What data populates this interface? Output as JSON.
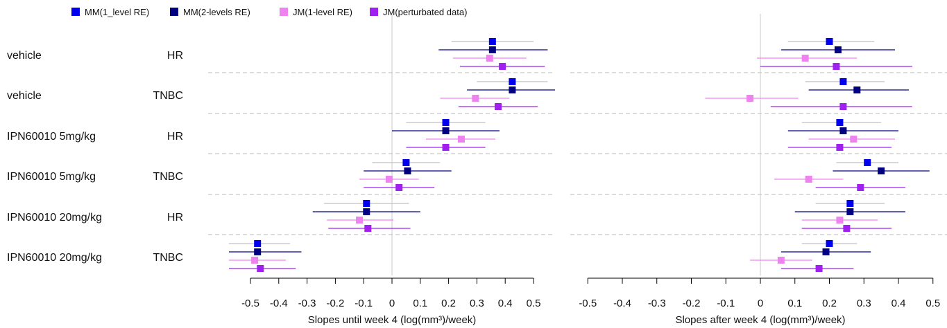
{
  "chart_data": {
    "type": "forest",
    "legend": [
      {
        "name": "MM(1_level RE)",
        "color": "#0000ee"
      },
      {
        "name": "MM(2-levels RE)",
        "color": "#000080"
      },
      {
        "name": "JM(1-level RE)",
        "color": "#ee82ee"
      },
      {
        "name": "JM(perturbated data)",
        "color": "#a020f0"
      }
    ],
    "legend_placement": "top-left",
    "ci_colors": [
      "#c0c0c0",
      "#000080",
      "#ee82ee",
      "#a020f0"
    ],
    "rows": [
      {
        "treatment": "vehicle",
        "subtype": "HR"
      },
      {
        "treatment": "vehicle",
        "subtype": "TNBC"
      },
      {
        "treatment": "IPN60010 5mg/kg",
        "subtype": "HR"
      },
      {
        "treatment": "IPN60010 5mg/kg",
        "subtype": "TNBC"
      },
      {
        "treatment": "IPN60010 20mg/kg",
        "subtype": "HR"
      },
      {
        "treatment": "IPN60010 20mg/kg",
        "subtype": "TNBC"
      }
    ],
    "panels": [
      {
        "xlabel": "Slopes until week 4 (log(mm³)/week)",
        "xlim": [
          -0.6,
          0.6
        ],
        "ticks": [
          "-0.5",
          "-0.4",
          "-0.3",
          "-0.2",
          "-0.1",
          "0",
          "0.1",
          "0.2",
          "0.3",
          "0.4",
          "0.5"
        ],
        "series": [
          {
            "name": "MM(1_level RE)",
            "estimates": [
              [
                0.355,
                0.21,
                0.5
              ],
              [
                0.425,
                0.3,
                0.55
              ],
              [
                0.19,
                0.05,
                0.33
              ],
              [
                0.05,
                -0.07,
                0.17
              ],
              [
                -0.09,
                -0.24,
                0.06
              ],
              [
                -0.475,
                -0.59,
                -0.36
              ]
            ]
          },
          {
            "name": "MM(2-levels RE)",
            "estimates": [
              [
                0.355,
                0.165,
                0.55
              ],
              [
                0.425,
                0.265,
                0.585
              ],
              [
                0.19,
                0.0,
                0.38
              ],
              [
                0.055,
                -0.1,
                0.21
              ],
              [
                -0.09,
                -0.28,
                0.1
              ],
              [
                -0.475,
                -0.63,
                -0.32
              ]
            ]
          },
          {
            "name": "JM(1-level RE)",
            "estimates": [
              [
                0.345,
                0.215,
                0.475
              ],
              [
                0.295,
                0.17,
                0.415
              ],
              [
                0.245,
                0.12,
                0.365
              ],
              [
                -0.01,
                -0.115,
                0.095
              ],
              [
                -0.115,
                -0.23,
                0.005
              ],
              [
                -0.485,
                -0.595,
                -0.375
              ]
            ]
          },
          {
            "name": "JM(perturbated data)",
            "estimates": [
              [
                0.39,
                0.24,
                0.54
              ],
              [
                0.375,
                0.235,
                0.515
              ],
              [
                0.19,
                0.05,
                0.33
              ],
              [
                0.025,
                -0.1,
                0.15
              ],
              [
                -0.085,
                -0.225,
                0.065
              ],
              [
                -0.465,
                -0.59,
                -0.34
              ]
            ]
          }
        ]
      },
      {
        "xlabel": "Slopes after week 4 (log(mm³)/week)",
        "xlim": [
          -0.55,
          0.55
        ],
        "ticks": [
          "-0.5",
          "-0.4",
          "-0.3",
          "-0.2",
          "-0.1",
          "0",
          "0.1",
          "0.2",
          "0.3",
          "0.4",
          "0.5"
        ],
        "series": [
          {
            "name": "MM(1_level RE)",
            "estimates": [
              [
                0.2,
                0.08,
                0.33
              ],
              [
                0.24,
                0.13,
                0.36
              ],
              [
                0.23,
                0.12,
                0.35
              ],
              [
                0.31,
                0.22,
                0.4
              ],
              [
                0.26,
                0.16,
                0.36
              ],
              [
                0.2,
                0.12,
                0.28
              ]
            ]
          },
          {
            "name": "MM(2-levels RE)",
            "estimates": [
              [
                0.225,
                0.06,
                0.39
              ],
              [
                0.28,
                0.14,
                0.43
              ],
              [
                0.24,
                0.08,
                0.4
              ],
              [
                0.35,
                0.21,
                0.49
              ],
              [
                0.26,
                0.1,
                0.42
              ],
              [
                0.19,
                0.06,
                0.32
              ]
            ]
          },
          {
            "name": "JM(1-level RE)",
            "estimates": [
              [
                0.13,
                -0.01,
                0.28
              ],
              [
                -0.03,
                -0.16,
                0.11
              ],
              [
                0.27,
                0.14,
                0.39
              ],
              [
                0.14,
                0.04,
                0.24
              ],
              [
                0.23,
                0.12,
                0.34
              ],
              [
                0.06,
                -0.03,
                0.15
              ]
            ]
          },
          {
            "name": "JM(perturbated data)",
            "estimates": [
              [
                0.22,
                0.0,
                0.44
              ],
              [
                0.24,
                0.03,
                0.44
              ],
              [
                0.23,
                0.08,
                0.38
              ],
              [
                0.29,
                0.16,
                0.42
              ],
              [
                0.25,
                0.12,
                0.38
              ],
              [
                0.17,
                0.06,
                0.27
              ]
            ]
          }
        ]
      }
    ]
  }
}
